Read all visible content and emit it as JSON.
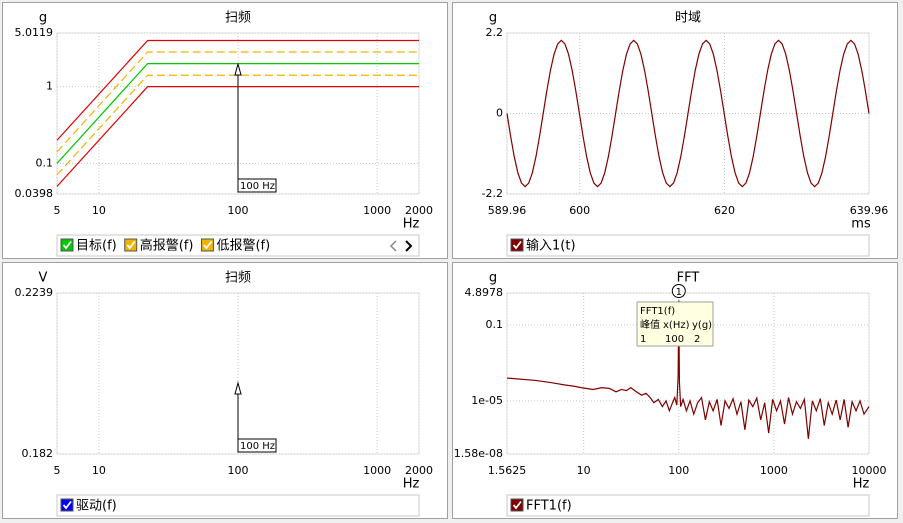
{
  "chart_data": [
    {
      "type": "line",
      "title": "扫频",
      "y_unit": "g",
      "x_unit": "Hz",
      "xlog": true,
      "ylog": true,
      "grid": true,
      "xlim": [
        5,
        2000
      ],
      "ylim": [
        0.0398,
        5.0119
      ],
      "xticks": [
        5,
        10,
        100,
        1000,
        2000
      ],
      "yticks": [
        0.0398,
        0.1,
        1,
        5.0119
      ],
      "x": [
        5,
        22.4,
        2000
      ],
      "series": [
        {
          "name": "目标(f)",
          "color": "#00c800",
          "values": [
            0.1,
            2,
            2
          ]
        },
        {
          "name": "高报警(f)",
          "color": "#f0b400",
          "dash": true,
          "values": [
            0.141,
            2.83,
            2.83
          ]
        },
        {
          "name": "低报警(f)",
          "color": "#f0b400",
          "dash": true,
          "values": [
            0.0707,
            1.41,
            1.41
          ]
        },
        {
          "color": "#e00000",
          "values": [
            0.2,
            4,
            4
          ]
        },
        {
          "color": "#e00000",
          "values": [
            0.05,
            1,
            1
          ]
        }
      ],
      "legend_text_color": "#000000",
      "annotation": {
        "text": "100 Hz",
        "x": 100
      }
    },
    {
      "type": "line",
      "title": "时域",
      "y_unit": "g",
      "x_unit": "ms",
      "grid": true,
      "xlim": [
        589.96,
        639.96
      ],
      "ylim": [
        -2.2,
        2.2
      ],
      "xticks": [
        589.96,
        600,
        620,
        639.96
      ],
      "yticks": [
        -2.2,
        0,
        2.2
      ],
      "x": [
        589.96,
        590.46,
        590.96,
        591.46,
        591.96,
        592.46,
        592.96,
        593.46,
        593.96,
        594.46,
        594.96,
        595.46,
        595.96,
        596.46,
        596.96,
        597.46,
        597.96,
        598.46,
        598.96,
        599.46,
        599.96,
        600.46,
        600.96,
        601.46,
        601.96,
        602.46,
        602.96,
        603.46,
        603.96,
        604.46,
        604.96,
        605.46,
        605.96,
        606.46,
        606.96,
        607.46,
        607.96,
        608.46,
        608.96,
        609.46,
        609.96,
        610.46,
        610.96,
        611.46,
        611.96,
        612.46,
        612.96,
        613.46,
        613.96,
        614.46,
        614.96,
        615.46,
        615.96,
        616.46,
        616.96,
        617.46,
        617.96,
        618.46,
        618.96,
        619.46,
        619.96,
        620.46,
        620.96,
        621.46,
        621.96,
        622.46,
        622.96,
        623.46,
        623.96,
        624.46,
        624.96,
        625.46,
        625.96,
        626.46,
        626.96,
        627.46,
        627.96,
        628.46,
        628.96,
        629.46,
        629.96,
        630.46,
        630.96,
        631.46,
        631.96,
        632.46,
        632.96,
        633.46,
        633.96,
        634.46,
        634.96,
        635.46,
        635.96,
        636.46,
        636.96,
        637.46,
        637.96,
        638.46,
        638.96,
        639.46,
        639.96
      ],
      "series": [
        {
          "name": "输入1(t)",
          "color": "#800000",
          "values": [
            0,
            -0.62,
            -1.18,
            -1.62,
            -1.9,
            -2,
            -1.9,
            -1.62,
            -1.18,
            -0.62,
            0,
            0.62,
            1.18,
            1.62,
            1.9,
            2,
            1.9,
            1.62,
            1.18,
            0.62,
            0,
            -0.62,
            -1.18,
            -1.62,
            -1.9,
            -2,
            -1.9,
            -1.62,
            -1.18,
            -0.62,
            0,
            0.62,
            1.18,
            1.62,
            1.9,
            2,
            1.9,
            1.62,
            1.18,
            0.62,
            0,
            -0.62,
            -1.18,
            -1.62,
            -1.9,
            -2,
            -1.9,
            -1.62,
            -1.18,
            -0.62,
            0,
            0.62,
            1.18,
            1.62,
            1.9,
            2,
            1.9,
            1.62,
            1.18,
            0.62,
            0,
            -0.62,
            -1.18,
            -1.62,
            -1.9,
            -2,
            -1.9,
            -1.62,
            -1.18,
            -0.62,
            0,
            0.62,
            1.18,
            1.62,
            1.9,
            2,
            1.9,
            1.62,
            1.18,
            0.62,
            0,
            -0.62,
            -1.18,
            -1.62,
            -1.9,
            -2,
            -1.9,
            -1.62,
            -1.18,
            -0.62,
            0,
            0.62,
            1.18,
            1.62,
            1.9,
            2,
            1.9,
            1.62,
            1.18,
            0.62,
            0
          ]
        }
      ],
      "legend_text_color": "#ff0000"
    },
    {
      "type": "line",
      "title": "扫频",
      "y_unit": "V",
      "x_unit": "Hz",
      "xlog": true,
      "grid": true,
      "xlim": [
        5,
        2000
      ],
      "ylim": [
        0.182,
        0.2239
      ],
      "xticks": [
        5,
        10,
        100,
        1000,
        2000
      ],
      "yticks": [
        0.182,
        0.2239
      ],
      "x": [],
      "series": [
        {
          "name": "驱动(f)",
          "color": "#0000ff",
          "values": []
        }
      ],
      "legend_text_color": "#ff0000",
      "annotation": {
        "text": "100 Hz",
        "x": 100
      }
    },
    {
      "type": "line",
      "title": "FFT",
      "y_unit": "g",
      "x_unit": "Hz",
      "xlog": true,
      "ylog": true,
      "grid": true,
      "xlim": [
        1.5625,
        10000
      ],
      "ylim": [
        1.58e-08,
        4.8978
      ],
      "xticks": [
        1.5625,
        10,
        100,
        1000,
        10000
      ],
      "yticks": [
        {
          "value": 1.58e-08,
          "label": "1.58e-08"
        },
        {
          "value": 1e-05,
          "label": "1e-05"
        },
        0.1,
        4.8978
      ],
      "x": [
        1.5625,
        3.125,
        4.6875,
        6.25,
        7.8125,
        9.375,
        12.5,
        15.625,
        18.75,
        21.875,
        25,
        28.125,
        31.25,
        35.9375,
        40.625,
        45.3125,
        50,
        54.6875,
        60.9375,
        67.1875,
        73.4375,
        79.6875,
        85.9375,
        90.625,
        95.3125,
        98.4375,
        100,
        101.5625,
        104.6875,
        110.9375,
        120.3125,
        131.25,
        143.75,
        157.8125,
        173.4375,
        190.625,
        209.375,
        229.6875,
        253.125,
        278.125,
        306.25,
        337.5,
        371.875,
        409.375,
        450,
        495.3125,
        545.3125,
        600,
        660.9375,
        726.5625,
        800,
        881.25,
        970.3125,
        1067.1875,
        1175,
        1293.75,
        1425,
        1568.75,
        1726.5625,
        1900,
        2092.1875,
        2303.125,
        2535.9375,
        2792.1875,
        3073.4375,
        3384.375,
        3726.5625,
        4103.125,
        4517.1875,
        4973.4375,
        5476.5625,
        6029.6875,
        6639.0625,
        7309.375,
        8048.4375,
        8860.9375,
        10000
      ],
      "series": [
        {
          "name": "FFT1(f)",
          "color": "#800000",
          "values": [
            0.00016,
            0.00012,
            9e-05,
            7e-05,
            6e-05,
            5e-05,
            4e-05,
            5e-05,
            4.5e-05,
            3e-05,
            4e-05,
            3.5e-05,
            5e-05,
            3e-05,
            2e-05,
            2.5e-05,
            1.5e-05,
            8e-06,
            1.2e-05,
            5e-06,
            1e-05,
            3e-06,
            8e-06,
            1.5e-05,
            6e-06,
            0.0002,
            2,
            0.0001,
            5e-06,
            1.2e-05,
            3e-06,
            1e-05,
            2e-06,
            8e-06,
            1.5e-05,
            1e-06,
            9e-06,
            3e-06,
            1.2e-05,
            5e-07,
            1e-05,
            4e-06,
            1.3e-05,
            2e-06,
            9e-06,
            3e-07,
            1.1e-05,
            5e-06,
            1.4e-05,
            1e-06,
            8e-06,
            2e-07,
            1.2e-05,
            3e-06,
            1e-05,
            6e-07,
            1.5e-05,
            2e-06,
            9e-06,
            4e-06,
            1.2e-05,
            1e-07,
            1e-05,
            3e-06,
            1.3e-05,
            5e-07,
            8e-06,
            2e-06,
            1.1e-05,
            1e-06,
            1.2e-05,
            4e-07,
            9e-06,
            3e-06,
            1e-05,
            2e-06,
            5e-06
          ]
        }
      ],
      "legend_text_color": "#ff0000",
      "peak_marker": {
        "label": "1",
        "x": 100
      },
      "tooltip": {
        "title": "FFT1(f)",
        "headers": [
          "峰值",
          "x(Hz)",
          "y(g)"
        ],
        "row": [
          1,
          100,
          2
        ]
      }
    }
  ]
}
